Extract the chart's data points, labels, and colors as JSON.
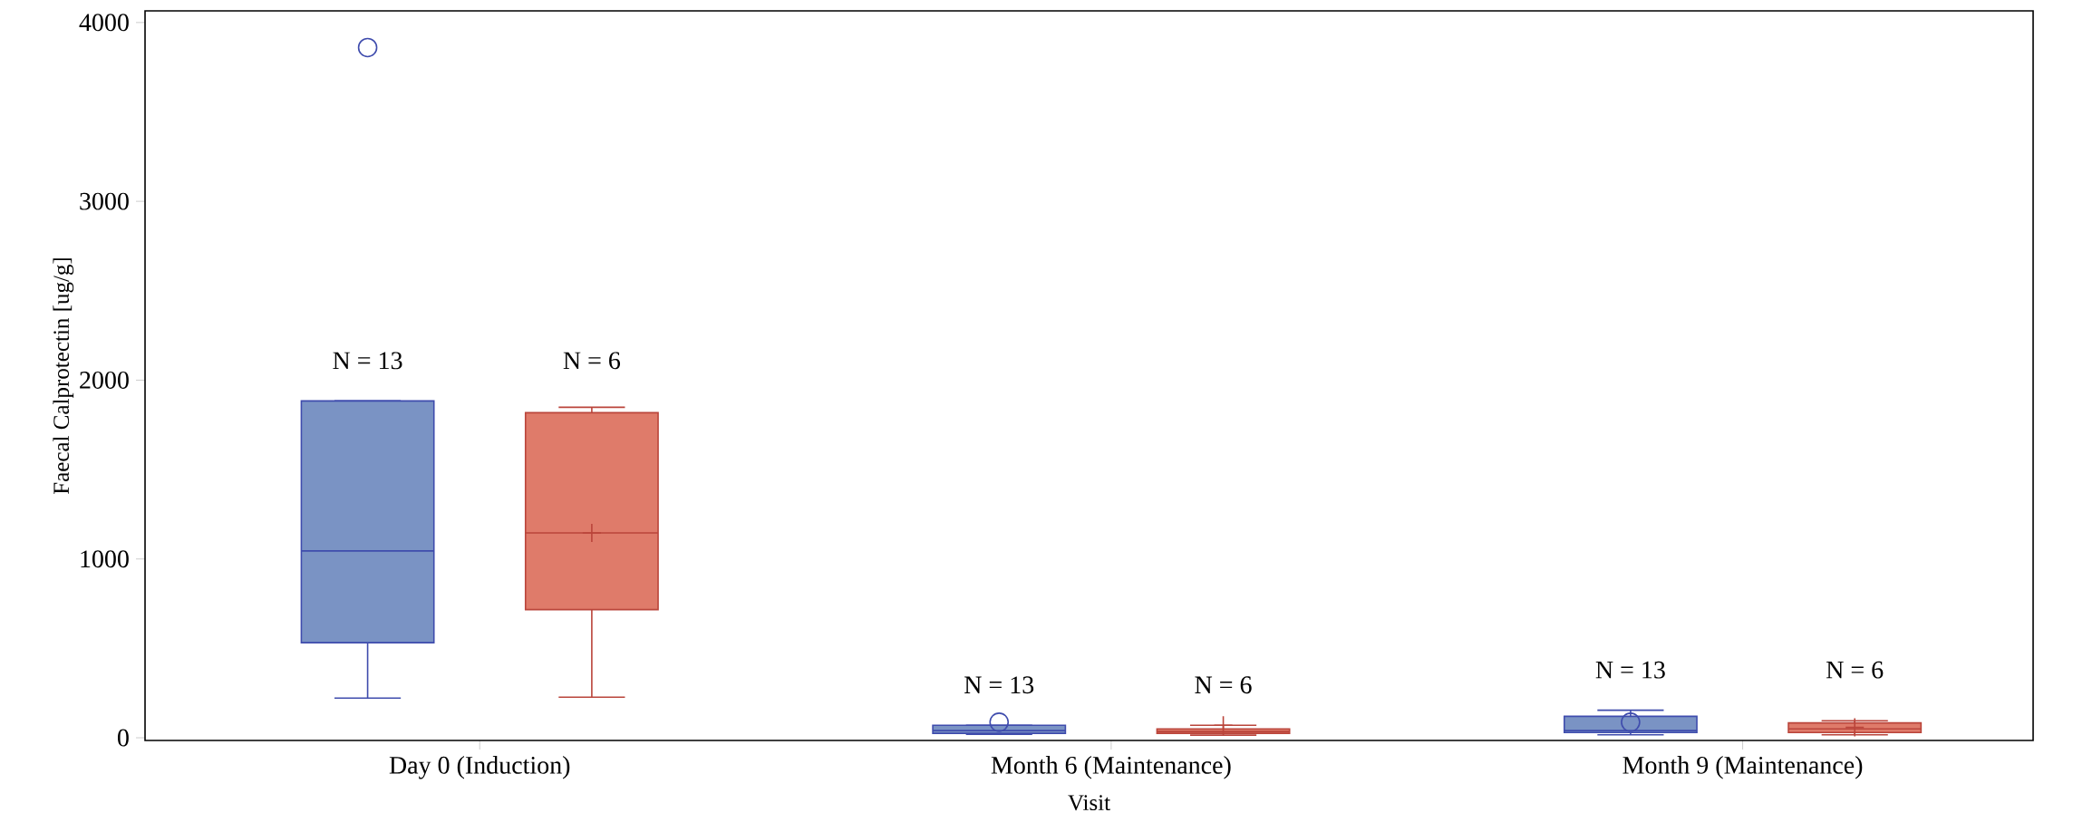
{
  "chart_data": {
    "type": "box",
    "xlabel": "Visit",
    "ylabel": "Faecal Calprotectin [ug/g]",
    "categories": [
      "Day 0 (Induction)",
      "Month 6 (Maintenance)",
      "Month 9 (Maintenance)"
    ],
    "ylim": [
      -15,
      4065
    ],
    "yticks": [
      0,
      1000,
      2000,
      3000,
      4000
    ],
    "series": [
      {
        "color": "#7a93c4",
        "marker": "circle",
        "value_labels": [
          "N = 13",
          "N = 13",
          "N = 13"
        ],
        "boxes": [
          {
            "low": 222,
            "q1": 532,
            "median": 1045,
            "q3": 1884,
            "high": 1884,
            "outliers": [
              3860
            ]
          },
          {
            "low": 20,
            "q1": 25,
            "median": 40,
            "q3": 70,
            "high": 70,
            "mean": 87
          },
          {
            "low": 17,
            "q1": 29,
            "median": 40,
            "q3": 120,
            "high": 154,
            "mean": 87
          }
        ]
      },
      {
        "color": "#df7b6a",
        "marker": "cross",
        "value_labels": [
          "N = 6",
          "N = 6",
          "N = 6"
        ],
        "boxes": [
          {
            "low": 227,
            "q1": 717,
            "median": 1146,
            "q3": 1818,
            "high": 1848,
            "mean": 1146
          },
          {
            "low": 15,
            "q1": 25,
            "median": 35,
            "q3": 50,
            "high": 70,
            "mean": 70
          },
          {
            "low": 17,
            "q1": 29,
            "median": 50,
            "q3": 83,
            "high": 95,
            "mean": 58
          }
        ]
      }
    ]
  }
}
